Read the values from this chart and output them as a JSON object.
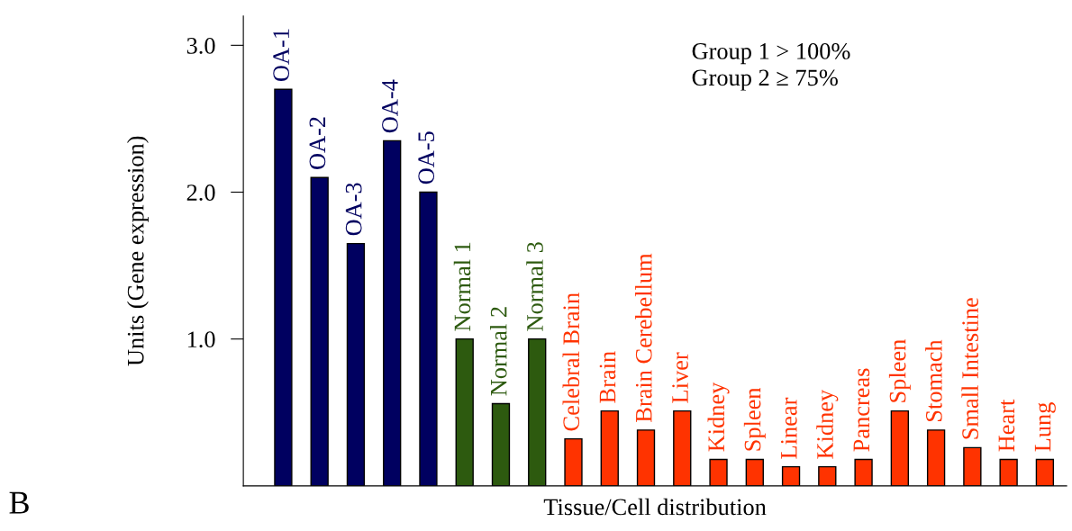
{
  "chart_data": {
    "type": "bar",
    "xlabel": "Tissue/Cell distribution",
    "ylabel": "Units (Gene expression)",
    "categories": [
      "OA-1",
      "OA-2",
      "OA-3",
      "OA-4",
      "OA-5",
      "Normal 1",
      "Normal 2",
      "Normal 3",
      "Celebral Brain",
      "Brain",
      "Brain Cerebellum",
      "Liver",
      "Kidney",
      "Spleen",
      "Linear",
      "Kidney",
      "Pancreas",
      "Spleen",
      "Stomach",
      "Small Intestine",
      "Heart",
      "Lung"
    ],
    "values": [
      2.7,
      2.1,
      1.65,
      2.35,
      2.0,
      1.0,
      0.56,
      1.0,
      0.32,
      0.51,
      0.38,
      0.51,
      0.18,
      0.18,
      0.13,
      0.13,
      0.18,
      0.51,
      0.38,
      0.26,
      0.18,
      0.18
    ],
    "colors": [
      "#000060",
      "#000060",
      "#000060",
      "#000060",
      "#000060",
      "#2d5a0f",
      "#2d5a0f",
      "#2d5a0f",
      "#ff3300",
      "#ff3300",
      "#ff3300",
      "#ff3300",
      "#ff3300",
      "#ff3300",
      "#ff3300",
      "#ff3300",
      "#ff3300",
      "#ff3300",
      "#ff3300",
      "#ff3300",
      "#ff3300",
      "#ff3300"
    ],
    "ylim": [
      0,
      3.2
    ],
    "yticks": [
      {
        "value": 1,
        "label": "1.0"
      },
      {
        "value": 2,
        "label": "2.0"
      },
      {
        "value": 3,
        "label": "3.0"
      }
    ],
    "grid": false,
    "legend": false,
    "annotations": [
      "Group 1 > 100%\nGroup 2 ≥ 75%",
      "B"
    ]
  }
}
